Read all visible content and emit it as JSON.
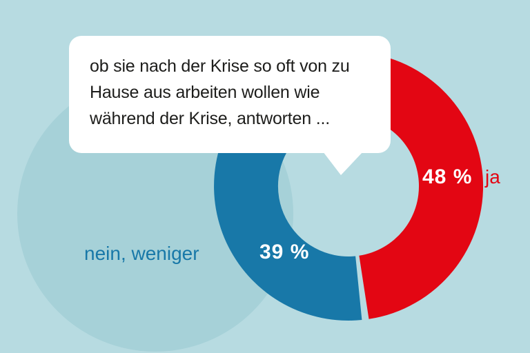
{
  "colors": {
    "background": "#b7dbe1",
    "decor_circle": "#a6d1d8",
    "bubble_background": "#ffffff",
    "bubble_text": "#1d1d1b"
  },
  "speech_bubble": {
    "lines": [
      "ob sie nach der Krise so oft von zu",
      "Hause aus arbeiten wollen wie",
      "während der Krise, antworten ..."
    ]
  },
  "chart_data": {
    "type": "donut",
    "title": "",
    "annotation": "ob sie nach der Krise so oft von zu Hause aus arbeiten wollen wie während der Krise, antworten ...",
    "legend_position": "on-chart",
    "start_angle_deg": 0,
    "gap_deg": 3,
    "segments": [
      {
        "label": "ja",
        "value": 48,
        "value_label": "48 %",
        "color": "#e30613",
        "value_text_color": "#ffffff",
        "label_text_color": "#e30613"
      },
      {
        "label": "nein, weniger",
        "value": 39,
        "value_label": "39 %",
        "color": "#1878a8",
        "value_text_color": "#ffffff",
        "label_text_color": "#1878a8"
      }
    ]
  }
}
